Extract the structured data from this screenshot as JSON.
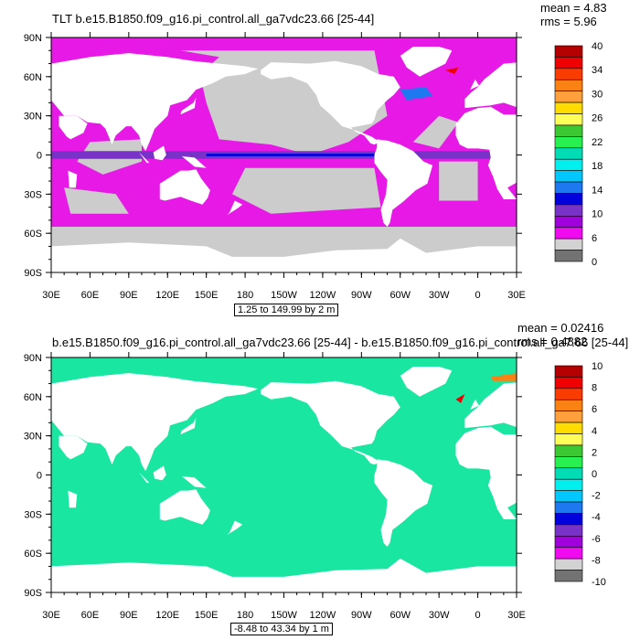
{
  "chart_data": [
    {
      "type": "heatmap",
      "title": "TLT b.e15.B1850.f09_g16.pi_control.all_ga7vdc23.66 [25-44]",
      "stats": {
        "mean": "mean = 4.83",
        "rms": "rms = 5.96"
      },
      "range_label": "1.25 to 149.99 by 2 m",
      "x_ticks": [
        "30E",
        "60E",
        "90E",
        "120E",
        "150E",
        "180",
        "150W",
        "120W",
        "90W",
        "60W",
        "30W",
        "0",
        "30E"
      ],
      "y_ticks": [
        "90N",
        "60N",
        "30N",
        "0",
        "30S",
        "60S",
        "90S"
      ],
      "xlim_deg_east": [
        30,
        390
      ],
      "ylim_deg": [
        -90,
        90
      ],
      "colorbar": {
        "labels": [
          "40",
          "34",
          "30",
          "26",
          "22",
          "18",
          "14",
          "10",
          "6",
          "0"
        ],
        "colors": [
          "#b40000",
          "#f00000",
          "#fa3c00",
          "#fa8214",
          "#ffa03c",
          "#ffdc00",
          "#ffff5a",
          "#3cc832",
          "#28f050",
          "#00dcb4",
          "#00f0f0",
          "#00c8ff",
          "#1e78f0",
          "#0000dc",
          "#7832c8",
          "#a000dc",
          "#f00af0",
          "#d2d2d2",
          "#737373"
        ]
      },
      "map_fill": {
        "ocean": "#e619e6",
        "missing": "#cccccc",
        "land": "#ffffff"
      }
    },
    {
      "type": "heatmap",
      "title": "b.e15.B1850.f09_g16.pi_control.all_ga7vdc23.66 [25-44] - b.e15.B1850.f09_g16.pi_control.all_ga7.66 [25-44]",
      "stats": {
        "mean": "mean = 0.02416",
        "rms": "rms = 0.4882"
      },
      "range_label": "-8.48 to 43.34 by 1 m",
      "x_ticks": [
        "30E",
        "60E",
        "90E",
        "120E",
        "150E",
        "180",
        "150W",
        "120W",
        "90W",
        "60W",
        "30W",
        "0",
        "30E"
      ],
      "y_ticks": [
        "90N",
        "60N",
        "30N",
        "0",
        "30S",
        "60S",
        "90S"
      ],
      "xlim_deg_east": [
        30,
        390
      ],
      "ylim_deg": [
        -90,
        90
      ],
      "colorbar": {
        "labels": [
          "10",
          "8",
          "6",
          "4",
          "2",
          "0",
          "-2",
          "-4",
          "-6",
          "-8",
          "-10"
        ],
        "colors": [
          "#b40000",
          "#f00000",
          "#fa3c00",
          "#fa8214",
          "#ffa03c",
          "#ffdc00",
          "#ffff5a",
          "#3cc832",
          "#28f050",
          "#00dcb4",
          "#00f0f0",
          "#00c8ff",
          "#1e78f0",
          "#0000dc",
          "#7832c8",
          "#a000dc",
          "#f00af0",
          "#d2d2d2",
          "#737373"
        ]
      },
      "map_fill": {
        "ocean": "#19e6a0",
        "missing": "#ffffff",
        "land": "#ffffff"
      }
    }
  ]
}
